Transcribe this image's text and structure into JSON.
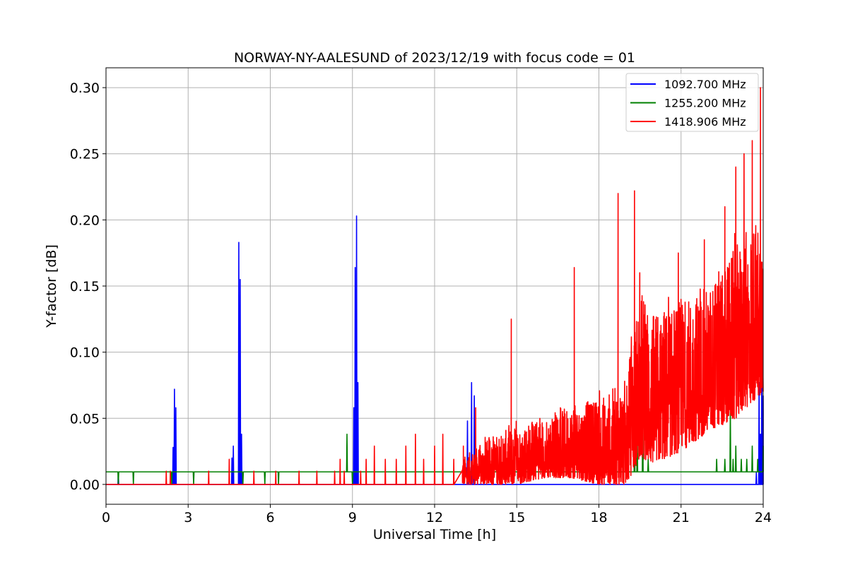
{
  "chart_data": {
    "type": "line",
    "title": "NORWAY-NY-AALESUND of 2023/12/19 with focus code = 01",
    "xlabel": "Universal Time [h]",
    "ylabel": "Y-factor [dB]",
    "xlim": [
      0,
      24
    ],
    "ylim": [
      -0.015,
      0.315
    ],
    "xticks": [
      0,
      3,
      6,
      9,
      12,
      15,
      18,
      21,
      24
    ],
    "xtick_labels": [
      "0",
      "3",
      "6",
      "9",
      "12",
      "15",
      "18",
      "21",
      "24"
    ],
    "yticks": [
      0.0,
      0.05,
      0.1,
      0.15,
      0.2,
      0.25,
      0.3
    ],
    "ytick_labels": [
      "0.00",
      "0.05",
      "0.10",
      "0.15",
      "0.20",
      "0.25",
      "0.30"
    ],
    "grid": true,
    "legend_position": "top-right",
    "series": [
      {
        "name": "1092.700 MHz",
        "color": "#0000ff",
        "baseline": 0.0,
        "spikes": [
          [
            0.45,
            0.009
          ],
          [
            2.45,
            0.028
          ],
          [
            2.5,
            0.072
          ],
          [
            2.55,
            0.058
          ],
          [
            4.6,
            0.02
          ],
          [
            4.65,
            0.029
          ],
          [
            4.85,
            0.183
          ],
          [
            4.9,
            0.155
          ],
          [
            4.95,
            0.038
          ],
          [
            9.05,
            0.058
          ],
          [
            9.1,
            0.164
          ],
          [
            9.15,
            0.203
          ],
          [
            9.2,
            0.077
          ],
          [
            13.2,
            0.048
          ],
          [
            13.35,
            0.077
          ],
          [
            13.45,
            0.067
          ],
          [
            23.75,
            0.009
          ],
          [
            23.85,
            0.077
          ],
          [
            23.9,
            0.038
          ],
          [
            23.95,
            0.096
          ],
          [
            24.0,
            0.067
          ]
        ]
      },
      {
        "name": "1255.200 MHz",
        "color": "#008000",
        "baseline": 0.0095,
        "spikes": [
          [
            0.45,
            0.0
          ],
          [
            1.0,
            0.0
          ],
          [
            2.4,
            0.0
          ],
          [
            3.2,
            0.0
          ],
          [
            5.0,
            0.0
          ],
          [
            5.8,
            0.0
          ],
          [
            6.3,
            0.0
          ],
          [
            8.8,
            0.038
          ],
          [
            9.0,
            0.0
          ],
          [
            19.0,
            0.029
          ],
          [
            19.3,
            0.077
          ],
          [
            19.4,
            0.05
          ],
          [
            19.6,
            0.067
          ],
          [
            19.8,
            0.019
          ],
          [
            22.3,
            0.019
          ],
          [
            22.6,
            0.019
          ],
          [
            22.8,
            0.058
          ],
          [
            22.9,
            0.019
          ],
          [
            23.0,
            0.029
          ],
          [
            23.2,
            0.019
          ],
          [
            23.4,
            0.019
          ],
          [
            23.6,
            0.029
          ],
          [
            23.8,
            0.019
          ],
          [
            24.0,
            0.029
          ]
        ]
      },
      {
        "name": "1418.906 MHz",
        "color": "#ff0000",
        "baseline": 0.0,
        "spikes": [
          [
            2.2,
            0.01
          ],
          [
            2.35,
            0.01
          ],
          [
            3.75,
            0.01
          ],
          [
            4.5,
            0.019
          ],
          [
            5.4,
            0.01
          ],
          [
            6.2,
            0.01
          ],
          [
            7.05,
            0.01
          ],
          [
            7.7,
            0.01
          ],
          [
            8.35,
            0.01
          ],
          [
            8.55,
            0.019
          ],
          [
            8.7,
            0.01
          ],
          [
            9.3,
            0.01
          ],
          [
            9.5,
            0.019
          ],
          [
            9.8,
            0.029
          ],
          [
            10.2,
            0.019
          ],
          [
            10.6,
            0.019
          ],
          [
            10.95,
            0.029
          ],
          [
            11.3,
            0.038
          ],
          [
            11.6,
            0.019
          ],
          [
            12.0,
            0.029
          ],
          [
            12.3,
            0.038
          ],
          [
            12.7,
            0.019
          ],
          [
            13.05,
            0.029
          ],
          [
            13.5,
            0.058
          ],
          [
            14.8,
            0.125
          ],
          [
            17.1,
            0.164
          ],
          [
            18.7,
            0.22
          ],
          [
            19.3,
            0.222
          ],
          [
            20.9,
            0.175
          ],
          [
            21.85,
            0.185
          ],
          [
            22.6,
            0.21
          ],
          [
            23.0,
            0.24
          ],
          [
            23.3,
            0.25
          ],
          [
            23.6,
            0.26
          ],
          [
            23.9,
            0.3
          ],
          [
            24.0,
            0.26
          ]
        ],
        "envelope": [
          [
            13.0,
            0.0,
            0.02
          ],
          [
            14.0,
            0.0,
            0.035
          ],
          [
            15.0,
            0.0,
            0.045
          ],
          [
            16.0,
            0.005,
            0.05
          ],
          [
            17.0,
            0.005,
            0.06
          ],
          [
            18.0,
            0.0,
            0.065
          ],
          [
            19.0,
            0.0,
            0.08
          ],
          [
            19.5,
            0.02,
            0.15
          ],
          [
            20.0,
            0.015,
            0.13
          ],
          [
            21.0,
            0.025,
            0.14
          ],
          [
            22.0,
            0.04,
            0.15
          ],
          [
            23.0,
            0.05,
            0.18
          ],
          [
            24.0,
            0.07,
            0.21
          ]
        ]
      }
    ]
  }
}
